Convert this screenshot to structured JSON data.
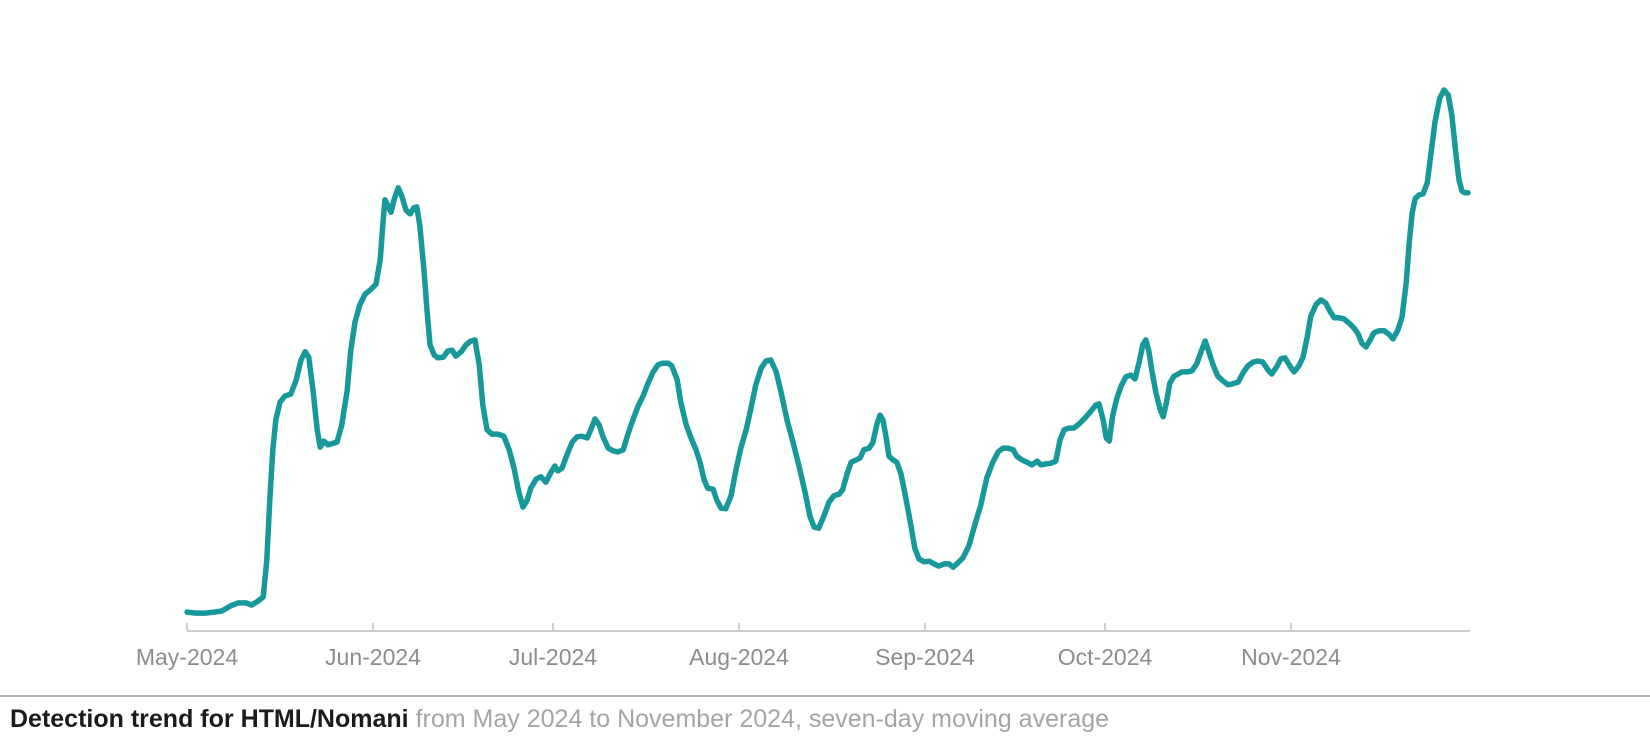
{
  "caption": {
    "title": "Detection trend for HTML/Nomani",
    "subtitle": "from May 2024 to November 2024, seven-day moving average"
  },
  "chart_data": {
    "type": "line",
    "title": "Detection trend for HTML/Nomani",
    "subtitle": "from May 2024 to November 2024, seven-day moving average",
    "x_unit": "days since 2024-05-01",
    "x_tick_labels": [
      "May-2024",
      "Jun-2024",
      "Jul-2024",
      "Aug-2024",
      "Sep-2024",
      "Oct-2024",
      "Nov-2024"
    ],
    "x_tick_days": [
      0,
      31,
      61,
      92,
      123,
      153,
      184
    ],
    "xlim_days": [
      0,
      213.5
    ],
    "ylim": [
      0,
      100
    ],
    "y_unit": "relative detections (percent of period maximum; y-axis unlabeled in source)",
    "grid": false,
    "legend_position": "none",
    "y_axis_visible": false,
    "colors": {
      "line": "#17999b",
      "axis": "#cccccc",
      "tick": "#cfcfcf",
      "tick_label": "#8c8c8c",
      "caption_title": "#1b1b1b",
      "caption_subtitle": "#a5a5a5",
      "caption_rule": "#b0b0b0"
    },
    "series": [
      {
        "name": "HTML/Nomani detections, seven-day moving average",
        "color": "#17999b",
        "points": [
          [
            0,
            3.5
          ],
          [
            1.5,
            3.3
          ],
          [
            3,
            3.3
          ],
          [
            4.5,
            3.5
          ],
          [
            5.8,
            3.7
          ],
          [
            7.2,
            4.6
          ],
          [
            8.5,
            5.2
          ],
          [
            9.8,
            5.2
          ],
          [
            10.8,
            4.8
          ],
          [
            11.8,
            5.5
          ],
          [
            12.7,
            6.3
          ],
          [
            13.3,
            13.1
          ],
          [
            13.8,
            24.2
          ],
          [
            14.3,
            33.5
          ],
          [
            14.8,
            39
          ],
          [
            15.5,
            42.3
          ],
          [
            16.3,
            43.4
          ],
          [
            17.3,
            43.8
          ],
          [
            18.2,
            46.4
          ],
          [
            19,
            50.1
          ],
          [
            19.7,
            51.6
          ],
          [
            20.3,
            50.6
          ],
          [
            21,
            44.5
          ],
          [
            21.7,
            37.2
          ],
          [
            22.2,
            34
          ],
          [
            22.8,
            35.1
          ],
          [
            23.5,
            34.4
          ],
          [
            24.3,
            34.7
          ],
          [
            25,
            34.9
          ],
          [
            25.8,
            38.1
          ],
          [
            26.7,
            44.5
          ],
          [
            27.3,
            51.9
          ],
          [
            28,
            57.1
          ],
          [
            28.8,
            60.3
          ],
          [
            29.7,
            62.3
          ],
          [
            30.7,
            63.2
          ],
          [
            31.5,
            64.1
          ],
          [
            32.2,
            68.6
          ],
          [
            32.7,
            76
          ],
          [
            33,
            79.7
          ],
          [
            33.5,
            78.6
          ],
          [
            34,
            77.4
          ],
          [
            34.5,
            79.7
          ],
          [
            35.2,
            81.9
          ],
          [
            35.8,
            80.4
          ],
          [
            36.5,
            77.8
          ],
          [
            37.2,
            77.1
          ],
          [
            37.8,
            78.2
          ],
          [
            38.3,
            78.4
          ],
          [
            38.8,
            75
          ],
          [
            39.5,
            66.7
          ],
          [
            40,
            59.3
          ],
          [
            40.5,
            52.9
          ],
          [
            41.2,
            51
          ],
          [
            41.8,
            50.5
          ],
          [
            42.7,
            50.6
          ],
          [
            43.5,
            51.8
          ],
          [
            44.2,
            51.9
          ],
          [
            44.8,
            50.8
          ],
          [
            45.7,
            51.6
          ],
          [
            46.5,
            52.9
          ],
          [
            47.3,
            53.6
          ],
          [
            48,
            53.8
          ],
          [
            48.7,
            49.2
          ],
          [
            49.3,
            41.8
          ],
          [
            50,
            37.2
          ],
          [
            50.8,
            36.4
          ],
          [
            51.8,
            36.4
          ],
          [
            52.8,
            36
          ],
          [
            53.7,
            33.5
          ],
          [
            54.5,
            30.1
          ],
          [
            55.3,
            25.7
          ],
          [
            56,
            22.9
          ],
          [
            56.7,
            24.2
          ],
          [
            57.3,
            26.4
          ],
          [
            58.2,
            28.1
          ],
          [
            59,
            28.5
          ],
          [
            59.8,
            27.5
          ],
          [
            60.7,
            29.4
          ],
          [
            61.3,
            30.5
          ],
          [
            61.8,
            29.6
          ],
          [
            62.5,
            30.1
          ],
          [
            63.3,
            32.5
          ],
          [
            64.2,
            34.9
          ],
          [
            65,
            35.9
          ],
          [
            65.8,
            36
          ],
          [
            66.7,
            35.7
          ],
          [
            67.3,
            37.2
          ],
          [
            68,
            39.2
          ],
          [
            68.7,
            38.1
          ],
          [
            69.3,
            36
          ],
          [
            70.2,
            33.8
          ],
          [
            71,
            33.3
          ],
          [
            71.8,
            33.1
          ],
          [
            72.7,
            33.5
          ],
          [
            73.5,
            36.4
          ],
          [
            74.3,
            39
          ],
          [
            75.2,
            41.6
          ],
          [
            76,
            43.4
          ],
          [
            76.8,
            45.7
          ],
          [
            77.7,
            47.9
          ],
          [
            78.5,
            49.2
          ],
          [
            79.3,
            49.5
          ],
          [
            80.2,
            49.5
          ],
          [
            80.8,
            49
          ],
          [
            81.7,
            46.4
          ],
          [
            82.3,
            42.3
          ],
          [
            83.2,
            38.1
          ],
          [
            84,
            35.7
          ],
          [
            84.8,
            33.6
          ],
          [
            85.5,
            31.2
          ],
          [
            86.2,
            27.9
          ],
          [
            86.8,
            26.4
          ],
          [
            87.7,
            26.2
          ],
          [
            88.3,
            24.2
          ],
          [
            89,
            22.7
          ],
          [
            89.8,
            22.6
          ],
          [
            90.7,
            25.1
          ],
          [
            91.5,
            29.8
          ],
          [
            92.3,
            33.8
          ],
          [
            93.2,
            37.2
          ],
          [
            94,
            41.2
          ],
          [
            94.8,
            45.5
          ],
          [
            95.7,
            48.6
          ],
          [
            96.5,
            49.9
          ],
          [
            97.3,
            50.1
          ],
          [
            98.2,
            47.9
          ],
          [
            99,
            44.2
          ],
          [
            100,
            39
          ],
          [
            101,
            34.9
          ],
          [
            102,
            30.5
          ],
          [
            103,
            25.7
          ],
          [
            103.8,
            21.3
          ],
          [
            104.5,
            19.2
          ],
          [
            105.3,
            19
          ],
          [
            106.2,
            21.4
          ],
          [
            107,
            23.8
          ],
          [
            107.8,
            25
          ],
          [
            108.7,
            25.3
          ],
          [
            109.3,
            26.2
          ],
          [
            110,
            29
          ],
          [
            110.7,
            31.2
          ],
          [
            111.5,
            31.6
          ],
          [
            112.2,
            32
          ],
          [
            112.8,
            33.5
          ],
          [
            113.7,
            33.8
          ],
          [
            114.3,
            34.8
          ],
          [
            115,
            38.3
          ],
          [
            115.5,
            39.9
          ],
          [
            116,
            39
          ],
          [
            116.5,
            35.9
          ],
          [
            117,
            32.3
          ],
          [
            117.7,
            31.6
          ],
          [
            118.3,
            31.2
          ],
          [
            119,
            29
          ],
          [
            119.8,
            24.6
          ],
          [
            120.7,
            19.2
          ],
          [
            121.3,
            15.3
          ],
          [
            122,
            13.3
          ],
          [
            122.8,
            12.8
          ],
          [
            123.7,
            12.9
          ],
          [
            124.5,
            12.4
          ],
          [
            125.3,
            12
          ],
          [
            126.2,
            12.4
          ],
          [
            127,
            12.4
          ],
          [
            127.7,
            11.8
          ],
          [
            128.5,
            12.6
          ],
          [
            129.3,
            13.5
          ],
          [
            130.3,
            15.7
          ],
          [
            131.3,
            19.6
          ],
          [
            132.3,
            23.3
          ],
          [
            133.3,
            28.3
          ],
          [
            134.3,
            31.2
          ],
          [
            135.2,
            33.1
          ],
          [
            136,
            33.8
          ],
          [
            136.8,
            33.8
          ],
          [
            137.7,
            33.5
          ],
          [
            138.3,
            32.3
          ],
          [
            139.2,
            31.6
          ],
          [
            140,
            31.2
          ],
          [
            140.8,
            30.7
          ],
          [
            141.7,
            31.4
          ],
          [
            142.3,
            30.7
          ],
          [
            143.2,
            30.9
          ],
          [
            144,
            31
          ],
          [
            144.8,
            31.4
          ],
          [
            145.5,
            35.3
          ],
          [
            146.2,
            37.2
          ],
          [
            147,
            37.5
          ],
          [
            147.8,
            37.5
          ],
          [
            148.7,
            38.3
          ],
          [
            149.7,
            39.4
          ],
          [
            150.7,
            40.7
          ],
          [
            151.5,
            41.8
          ],
          [
            152,
            42
          ],
          [
            152.7,
            39
          ],
          [
            153.2,
            35.7
          ],
          [
            153.7,
            35.1
          ],
          [
            154.3,
            39.9
          ],
          [
            155,
            43.1
          ],
          [
            155.7,
            45.3
          ],
          [
            156.5,
            47
          ],
          [
            157.3,
            47.3
          ],
          [
            158,
            46.6
          ],
          [
            158.7,
            49.7
          ],
          [
            159.3,
            52.9
          ],
          [
            159.8,
            53.8
          ],
          [
            160.3,
            51.8
          ],
          [
            160.8,
            48.2
          ],
          [
            161.5,
            44
          ],
          [
            162.2,
            40.9
          ],
          [
            162.7,
            39.6
          ],
          [
            163.2,
            42
          ],
          [
            163.8,
            45.8
          ],
          [
            164.5,
            47.1
          ],
          [
            165.2,
            47.5
          ],
          [
            165.8,
            47.9
          ],
          [
            166.7,
            47.9
          ],
          [
            167.5,
            48.1
          ],
          [
            168.3,
            49.4
          ],
          [
            169,
            51.6
          ],
          [
            169.7,
            53.6
          ],
          [
            170.3,
            51.6
          ],
          [
            171,
            49.2
          ],
          [
            171.8,
            47.1
          ],
          [
            172.7,
            46.2
          ],
          [
            173.5,
            45.5
          ],
          [
            174.3,
            45.7
          ],
          [
            175.2,
            46
          ],
          [
            176,
            47.7
          ],
          [
            176.8,
            49
          ],
          [
            177.7,
            49.7
          ],
          [
            178.5,
            49.9
          ],
          [
            179.3,
            49.7
          ],
          [
            180.2,
            48.2
          ],
          [
            180.8,
            47.5
          ],
          [
            181.7,
            49
          ],
          [
            182.3,
            50.3
          ],
          [
            183,
            50.5
          ],
          [
            183.8,
            49
          ],
          [
            184.5,
            47.9
          ],
          [
            185.3,
            49
          ],
          [
            186,
            50.6
          ],
          [
            186.7,
            54.3
          ],
          [
            187.3,
            58.2
          ],
          [
            188.2,
            60.4
          ],
          [
            189,
            61.2
          ],
          [
            189.8,
            60.6
          ],
          [
            190.5,
            59.1
          ],
          [
            191.2,
            57.9
          ],
          [
            192,
            57.9
          ],
          [
            192.8,
            57.7
          ],
          [
            193.7,
            56.9
          ],
          [
            194.5,
            56
          ],
          [
            195.2,
            54.9
          ],
          [
            195.8,
            53.2
          ],
          [
            196.5,
            52.5
          ],
          [
            197.2,
            53.8
          ],
          [
            197.8,
            55.1
          ],
          [
            198.7,
            55.5
          ],
          [
            199.5,
            55.5
          ],
          [
            200.3,
            54.9
          ],
          [
            201,
            54
          ],
          [
            201.8,
            55.6
          ],
          [
            202.5,
            58
          ],
          [
            203.2,
            64.3
          ],
          [
            203.7,
            71.7
          ],
          [
            204.2,
            77.3
          ],
          [
            204.7,
            79.9
          ],
          [
            205.3,
            80.6
          ],
          [
            206,
            80.8
          ],
          [
            206.7,
            82.8
          ],
          [
            207.3,
            88
          ],
          [
            208,
            94.1
          ],
          [
            208.8,
            98.5
          ],
          [
            209.5,
            100
          ],
          [
            210.2,
            99.1
          ],
          [
            210.8,
            95.4
          ],
          [
            211.5,
            88
          ],
          [
            212,
            83.4
          ],
          [
            212.5,
            81.3
          ],
          [
            213,
            81
          ],
          [
            213.5,
            81
          ]
        ]
      }
    ]
  }
}
